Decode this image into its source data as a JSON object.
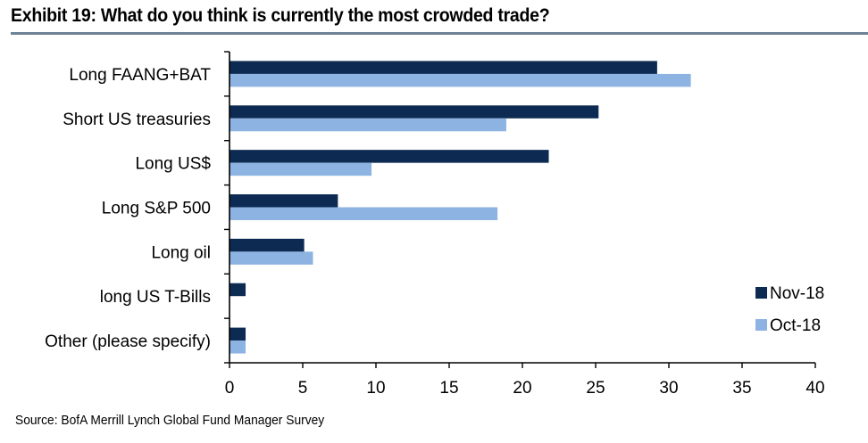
{
  "header": {
    "title": "Exhibit 19: What do you think is currently the most crowded trade?"
  },
  "footer": {
    "source": "Source: BofA Merrill Lynch Global Fund Manager Survey"
  },
  "chart_data": {
    "type": "bar",
    "orientation": "horizontal",
    "title": "Exhibit 19: What do you think is currently the most crowded trade?",
    "xlabel": "",
    "ylabel": "",
    "categories": [
      "Long FAANG+BAT",
      "Short US treasuries",
      "Long US$",
      "Long S&P 500",
      "Long oil",
      "long US T-Bills",
      "Other (please specify)"
    ],
    "series": [
      {
        "name": "Nov-18",
        "color": "#0d2b52",
        "values": [
          29.2,
          25.2,
          21.8,
          7.4,
          5.1,
          1.1,
          1.1
        ]
      },
      {
        "name": "Oct-18",
        "color": "#8db3e2",
        "values": [
          31.5,
          18.9,
          9.7,
          18.3,
          5.7,
          0,
          1.1
        ]
      }
    ],
    "xlim": [
      0,
      40
    ],
    "xticks": [
      0,
      5,
      10,
      15,
      20,
      25,
      30,
      35,
      40
    ],
    "grid": false,
    "legend": "bottom-right"
  }
}
